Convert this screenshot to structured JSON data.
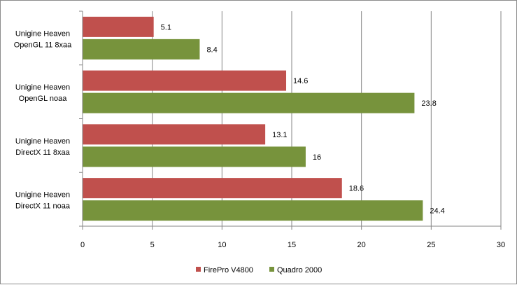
{
  "chart_data": {
    "type": "bar",
    "orientation": "horizontal",
    "categories": [
      [
        "Unigine Heaven",
        "OpenGL 11 8xaa"
      ],
      [
        "Unigine Heaven",
        "OpenGL noaa"
      ],
      [
        "Unigine Heaven",
        "DirectX 11 8xaa"
      ],
      [
        "Unigine Heaven",
        "DirectX 11 noaa"
      ]
    ],
    "series": [
      {
        "name": "FirePro V4800",
        "color": "#c0504d",
        "values": [
          5.1,
          14.6,
          13.1,
          18.6
        ],
        "labels": [
          "5.1",
          "14.6",
          "13.1",
          "18.6"
        ]
      },
      {
        "name": "Quadro 2000",
        "color": "#77933c",
        "values": [
          8.4,
          23.8,
          16,
          24.4
        ],
        "labels": [
          "8.4",
          "23.8",
          "16",
          "24.4"
        ]
      }
    ],
    "xlim": [
      0,
      30
    ],
    "ticks": [
      0,
      5,
      10,
      15,
      20,
      25,
      30
    ],
    "tick_labels": [
      "0",
      "5",
      "10",
      "15",
      "20",
      "25",
      "30"
    ],
    "grid": true,
    "legend_position": "bottom"
  }
}
